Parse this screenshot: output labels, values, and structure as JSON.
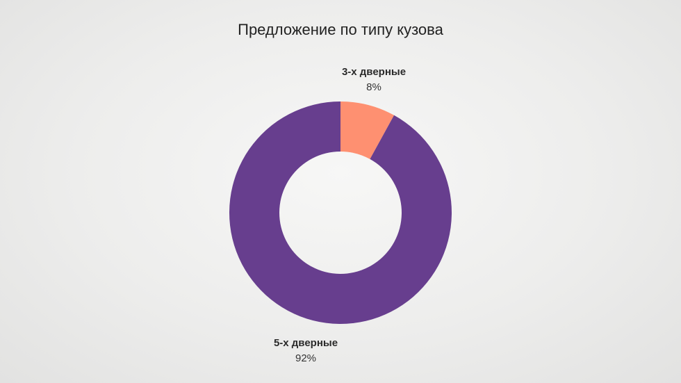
{
  "chart_data": {
    "type": "pie",
    "donut": true,
    "title": "Предложение по типу кузова",
    "slices": [
      {
        "label": "3-х дверные",
        "value": 8,
        "value_label": "8%",
        "color": "#fe9071"
      },
      {
        "label": "5-х дверные",
        "value": 92,
        "value_label": "92%",
        "color": "#673e8e"
      }
    ],
    "legend": "none"
  }
}
